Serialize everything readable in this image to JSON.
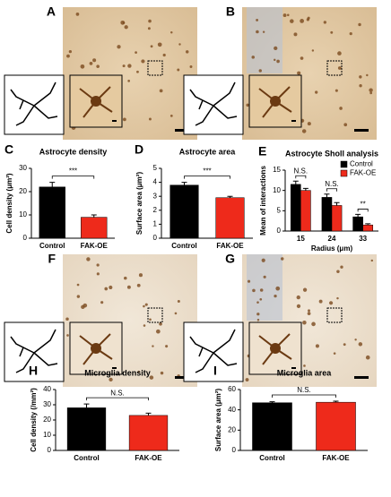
{
  "image_panels": [
    "A",
    "B",
    "F",
    "G"
  ],
  "chart_data": [
    {
      "type": "bar",
      "panel": "C",
      "title": "Astrocyte density",
      "ylabel": "Cell density (μm²)",
      "categories": [
        "Control",
        "FAK-OE"
      ],
      "values": [
        22,
        9
      ],
      "errors": [
        2,
        1
      ],
      "colors": [
        "#000000",
        "#ee2a1b"
      ],
      "ylim": [
        0,
        30
      ],
      "yticks": [
        0,
        10,
        20,
        30
      ],
      "annotation": "***"
    },
    {
      "type": "bar",
      "panel": "D",
      "title": "Astrocyte area",
      "ylabel": "Surface area (μm²)",
      "categories": [
        "Control",
        "FAK-OE"
      ],
      "values": [
        3.8,
        2.9
      ],
      "errors": [
        0.2,
        0.1
      ],
      "colors": [
        "#000000",
        "#ee2a1b"
      ],
      "ylim": [
        0,
        5
      ],
      "yticks": [
        0,
        1,
        2,
        3,
        4,
        5
      ],
      "annotation": "***"
    },
    {
      "type": "grouped_bar",
      "panel": "E",
      "title": "Astrocyte Sholl analysis",
      "ylabel": "Mean of interactions",
      "xlabel": "Radius (μm)",
      "categories": [
        "15",
        "24",
        "33"
      ],
      "series": [
        {
          "name": "Control",
          "color": "#000000",
          "values": [
            11.5,
            8.3,
            3.5
          ],
          "errors": [
            0.8,
            0.8,
            0.6
          ]
        },
        {
          "name": "FAK-OE",
          "color": "#ee2a1b",
          "values": [
            10,
            6.3,
            1.5
          ],
          "errors": [
            0.5,
            0.7,
            0.3
          ]
        }
      ],
      "ylim": [
        0,
        15
      ],
      "yticks": [
        0,
        5,
        10,
        15
      ],
      "annotations": [
        "N.S.",
        "N.S.",
        "**"
      ],
      "legend": "upper right"
    },
    {
      "type": "bar",
      "panel": "H",
      "title": "Microglia density",
      "ylabel": "Cell density (/mm²)",
      "categories": [
        "Control",
        "FAK-OE"
      ],
      "values": [
        28,
        23
      ],
      "errors": [
        2.5,
        1.5
      ],
      "colors": [
        "#000000",
        "#ee2a1b"
      ],
      "ylim": [
        0,
        40
      ],
      "yticks": [
        0,
        10,
        20,
        30,
        40
      ],
      "annotation": "N.S."
    },
    {
      "type": "bar",
      "panel": "I",
      "title": "Microglia area",
      "ylabel": "Surface area (μm²)",
      "categories": [
        "Control",
        "FAK-OE"
      ],
      "values": [
        47,
        47.5
      ],
      "errors": [
        1,
        1
      ],
      "colors": [
        "#000000",
        "#ee2a1b"
      ],
      "ylim": [
        0,
        60
      ],
      "yticks": [
        0,
        20,
        40,
        60
      ],
      "annotation": "N.S."
    }
  ]
}
